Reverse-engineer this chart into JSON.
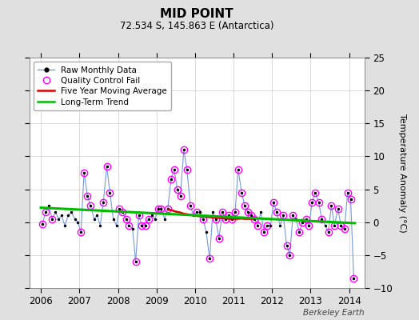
{
  "title": "MID POINT",
  "subtitle": "72.534 S, 145.863 E (Antarctica)",
  "ylabel": "Temperature Anomaly (°C)",
  "credit": "Berkeley Earth",
  "xlim": [
    2005.7,
    2014.4
  ],
  "ylim": [
    -10,
    25
  ],
  "yticks": [
    -10,
    -5,
    0,
    5,
    10,
    15,
    20,
    25
  ],
  "xticks": [
    2006,
    2007,
    2008,
    2009,
    2010,
    2011,
    2012,
    2013,
    2014
  ],
  "bg_color": "#e0e0e0",
  "plot_bg_color": "#ffffff",
  "raw_x": [
    2006.04,
    2006.12,
    2006.21,
    2006.29,
    2006.38,
    2006.46,
    2006.54,
    2006.62,
    2006.71,
    2006.79,
    2006.88,
    2006.96,
    2007.04,
    2007.12,
    2007.21,
    2007.29,
    2007.38,
    2007.46,
    2007.54,
    2007.62,
    2007.71,
    2007.79,
    2007.88,
    2007.96,
    2008.04,
    2008.12,
    2008.21,
    2008.29,
    2008.38,
    2008.46,
    2008.54,
    2008.62,
    2008.71,
    2008.79,
    2008.88,
    2008.96,
    2009.04,
    2009.12,
    2009.21,
    2009.29,
    2009.38,
    2009.46,
    2009.54,
    2009.62,
    2009.71,
    2009.79,
    2009.88,
    2009.96,
    2010.04,
    2010.12,
    2010.21,
    2010.29,
    2010.38,
    2010.46,
    2010.54,
    2010.62,
    2010.71,
    2010.79,
    2010.88,
    2010.96,
    2011.04,
    2011.12,
    2011.21,
    2011.29,
    2011.38,
    2011.46,
    2011.54,
    2011.62,
    2011.71,
    2011.79,
    2011.88,
    2011.96,
    2012.04,
    2012.12,
    2012.21,
    2012.29,
    2012.38,
    2012.46,
    2012.54,
    2012.62,
    2012.71,
    2012.79,
    2012.88,
    2012.96,
    2013.04,
    2013.12,
    2013.21,
    2013.29,
    2013.38,
    2013.46,
    2013.54,
    2013.62,
    2013.71,
    2013.79,
    2013.88,
    2013.96,
    2014.04,
    2014.12
  ],
  "raw_y": [
    -0.3,
    1.5,
    2.5,
    0.5,
    1.5,
    0.5,
    1.0,
    -0.5,
    1.0,
    1.5,
    0.5,
    0.0,
    -1.5,
    7.5,
    4.0,
    2.5,
    0.5,
    1.0,
    -0.5,
    3.0,
    8.5,
    4.5,
    0.5,
    -0.5,
    2.0,
    1.5,
    0.5,
    -0.5,
    -1.0,
    -6.0,
    1.0,
    -0.5,
    -0.5,
    0.5,
    1.0,
    0.5,
    2.0,
    2.0,
    0.5,
    2.0,
    6.5,
    8.0,
    5.0,
    4.0,
    11.0,
    8.0,
    2.5,
    1.0,
    1.5,
    1.5,
    0.5,
    -1.5,
    -5.5,
    1.5,
    0.5,
    -2.5,
    1.5,
    0.5,
    1.0,
    0.5,
    1.5,
    8.0,
    4.5,
    2.5,
    1.5,
    1.0,
    0.5,
    -0.5,
    1.5,
    -1.5,
    -0.5,
    -0.5,
    3.0,
    1.5,
    -0.5,
    1.0,
    -3.5,
    -5.0,
    1.0,
    0.5,
    -1.5,
    0.0,
    0.5,
    -0.5,
    3.0,
    4.5,
    3.0,
    0.5,
    -0.5,
    -1.5,
    2.5,
    -0.5,
    2.0,
    -0.5,
    -1.0,
    4.5,
    3.5,
    -8.5
  ],
  "qc_fail_x": [
    2006.04,
    2006.12,
    2006.29,
    2007.04,
    2007.12,
    2007.21,
    2007.29,
    2007.62,
    2007.71,
    2007.79,
    2008.04,
    2008.12,
    2008.21,
    2008.29,
    2008.46,
    2008.54,
    2008.62,
    2008.71,
    2008.79,
    2009.04,
    2009.12,
    2009.29,
    2009.38,
    2009.46,
    2009.54,
    2009.62,
    2009.71,
    2009.79,
    2009.88,
    2010.04,
    2010.21,
    2010.38,
    2010.54,
    2010.62,
    2010.71,
    2010.79,
    2010.88,
    2010.96,
    2011.04,
    2011.12,
    2011.21,
    2011.29,
    2011.38,
    2011.46,
    2011.54,
    2011.62,
    2011.79,
    2011.88,
    2012.04,
    2012.12,
    2012.29,
    2012.38,
    2012.46,
    2012.54,
    2012.71,
    2012.79,
    2012.88,
    2012.96,
    2013.04,
    2013.12,
    2013.21,
    2013.29,
    2013.46,
    2013.54,
    2013.62,
    2013.71,
    2013.79,
    2013.88,
    2013.96,
    2014.04,
    2014.12
  ],
  "qc_fail_y": [
    -0.3,
    1.5,
    0.5,
    -1.5,
    7.5,
    4.0,
    2.5,
    3.0,
    8.5,
    4.5,
    2.0,
    1.5,
    0.5,
    -0.5,
    -6.0,
    1.0,
    -0.5,
    -0.5,
    0.5,
    2.0,
    2.0,
    2.0,
    6.5,
    8.0,
    5.0,
    4.0,
    11.0,
    8.0,
    2.5,
    1.5,
    0.5,
    -5.5,
    0.5,
    -2.5,
    1.5,
    0.5,
    1.0,
    0.5,
    1.5,
    8.0,
    4.5,
    2.5,
    1.5,
    1.0,
    0.5,
    -0.5,
    -1.5,
    -0.5,
    3.0,
    1.5,
    1.0,
    -3.5,
    -5.0,
    1.0,
    -1.5,
    0.0,
    0.5,
    -0.5,
    3.0,
    4.5,
    3.0,
    0.5,
    -1.5,
    2.5,
    -0.5,
    2.0,
    -0.5,
    -1.0,
    4.5,
    3.5,
    -8.5
  ],
  "moving_avg_x": [
    2009.3,
    2009.4,
    2009.5,
    2009.6,
    2009.7,
    2009.8,
    2009.9,
    2010.0,
    2010.1,
    2010.2,
    2010.3,
    2010.4,
    2010.5,
    2010.6,
    2010.7,
    2010.8,
    2010.9,
    2011.0,
    2011.1,
    2011.2,
    2011.3,
    2011.4,
    2011.5
  ],
  "moving_avg_y": [
    1.9,
    1.8,
    1.6,
    1.5,
    1.3,
    1.2,
    1.1,
    1.0,
    0.9,
    0.85,
    0.8,
    0.75,
    0.7,
    0.65,
    0.6,
    0.55,
    0.5,
    0.5,
    0.5,
    0.55,
    0.5,
    0.5,
    0.5
  ],
  "trend_x": [
    2006.0,
    2014.15
  ],
  "trend_y": [
    2.2,
    -0.15
  ],
  "line_color": "#7799dd",
  "dot_color": "#000000",
  "qc_color": "magenta",
  "mavg_color": "#dd0000",
  "trend_color": "#00bb00"
}
